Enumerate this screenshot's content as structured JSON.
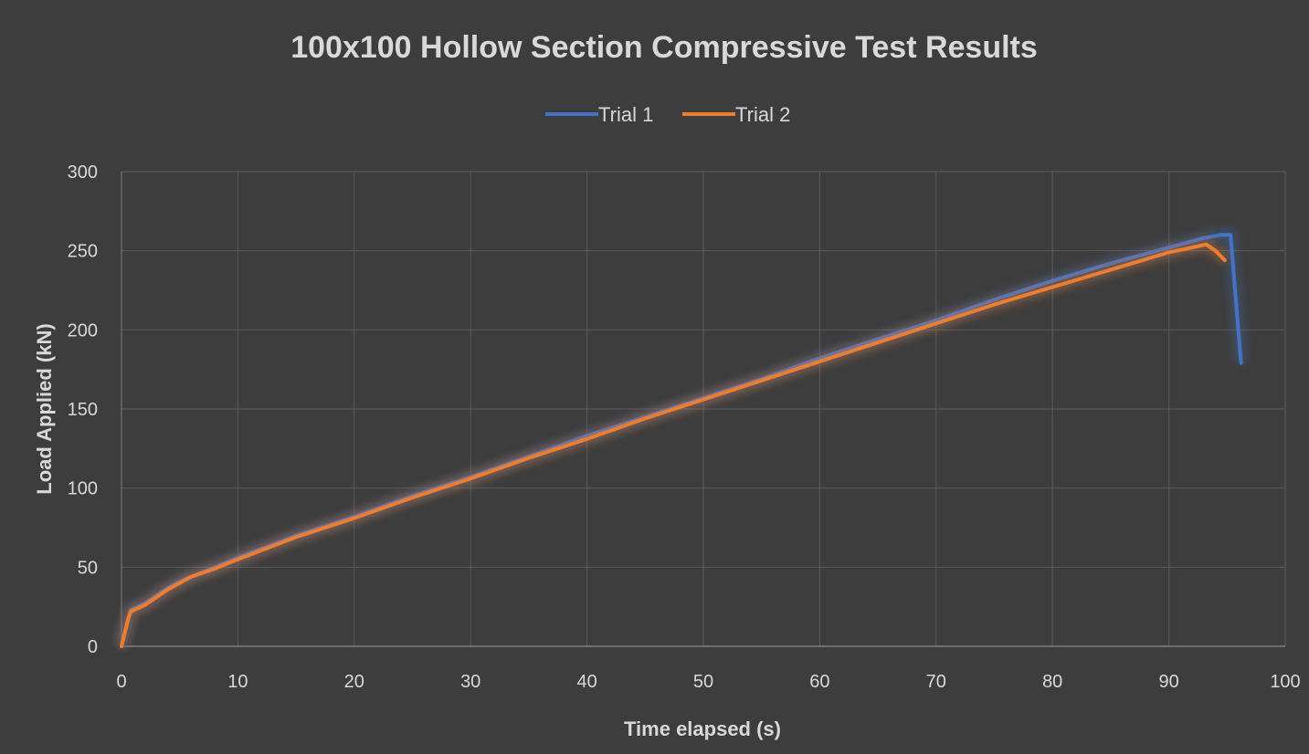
{
  "chart_data": {
    "type": "line",
    "title": "100x100 Hollow Section Compressive Test Results",
    "xlabel": "Time elapsed (s)",
    "ylabel": "Load Applied (kN)",
    "xlim": [
      0,
      100
    ],
    "ylim": [
      0,
      300
    ],
    "xticks": [
      0,
      10,
      20,
      30,
      40,
      50,
      60,
      70,
      80,
      90,
      100
    ],
    "yticks": [
      0,
      50,
      100,
      150,
      200,
      250,
      300
    ],
    "grid": true,
    "legend_position": "top",
    "series": [
      {
        "name": "Trial 1",
        "color": "#4472c4",
        "points": [
          [
            0,
            0
          ],
          [
            0.3,
            9
          ],
          [
            0.6,
            18
          ],
          [
            0.8,
            23
          ],
          [
            2,
            27
          ],
          [
            3,
            32
          ],
          [
            4,
            37
          ],
          [
            5,
            41
          ],
          [
            6,
            44
          ],
          [
            8,
            50
          ],
          [
            10,
            56
          ],
          [
            15,
            70
          ],
          [
            20,
            82
          ],
          [
            25,
            95
          ],
          [
            30,
            107
          ],
          [
            35,
            120
          ],
          [
            40,
            133
          ],
          [
            45,
            145
          ],
          [
            50,
            157
          ],
          [
            55,
            169
          ],
          [
            60,
            182
          ],
          [
            65,
            194
          ],
          [
            70,
            206
          ],
          [
            75,
            219
          ],
          [
            80,
            231
          ],
          [
            85,
            242
          ],
          [
            90,
            252
          ],
          [
            93,
            258
          ],
          [
            94.5,
            260
          ],
          [
            95.3,
            260
          ],
          [
            96.2,
            179
          ]
        ]
      },
      {
        "name": "Trial 2",
        "color": "#ed7d31",
        "points": [
          [
            0,
            0
          ],
          [
            0.3,
            9
          ],
          [
            0.6,
            18
          ],
          [
            0.8,
            22
          ],
          [
            2,
            26
          ],
          [
            3,
            31
          ],
          [
            4,
            36
          ],
          [
            5,
            40
          ],
          [
            6,
            44
          ],
          [
            8,
            49
          ],
          [
            10,
            55
          ],
          [
            15,
            69
          ],
          [
            20,
            81
          ],
          [
            25,
            94
          ],
          [
            30,
            106
          ],
          [
            35,
            119
          ],
          [
            40,
            131
          ],
          [
            45,
            144
          ],
          [
            50,
            156
          ],
          [
            55,
            168
          ],
          [
            60,
            180
          ],
          [
            65,
            192
          ],
          [
            70,
            204
          ],
          [
            75,
            216
          ],
          [
            80,
            227
          ],
          [
            85,
            238
          ],
          [
            90,
            249
          ],
          [
            92,
            252
          ],
          [
            93.2,
            254
          ],
          [
            94,
            250
          ],
          [
            94.8,
            244
          ]
        ]
      }
    ]
  }
}
